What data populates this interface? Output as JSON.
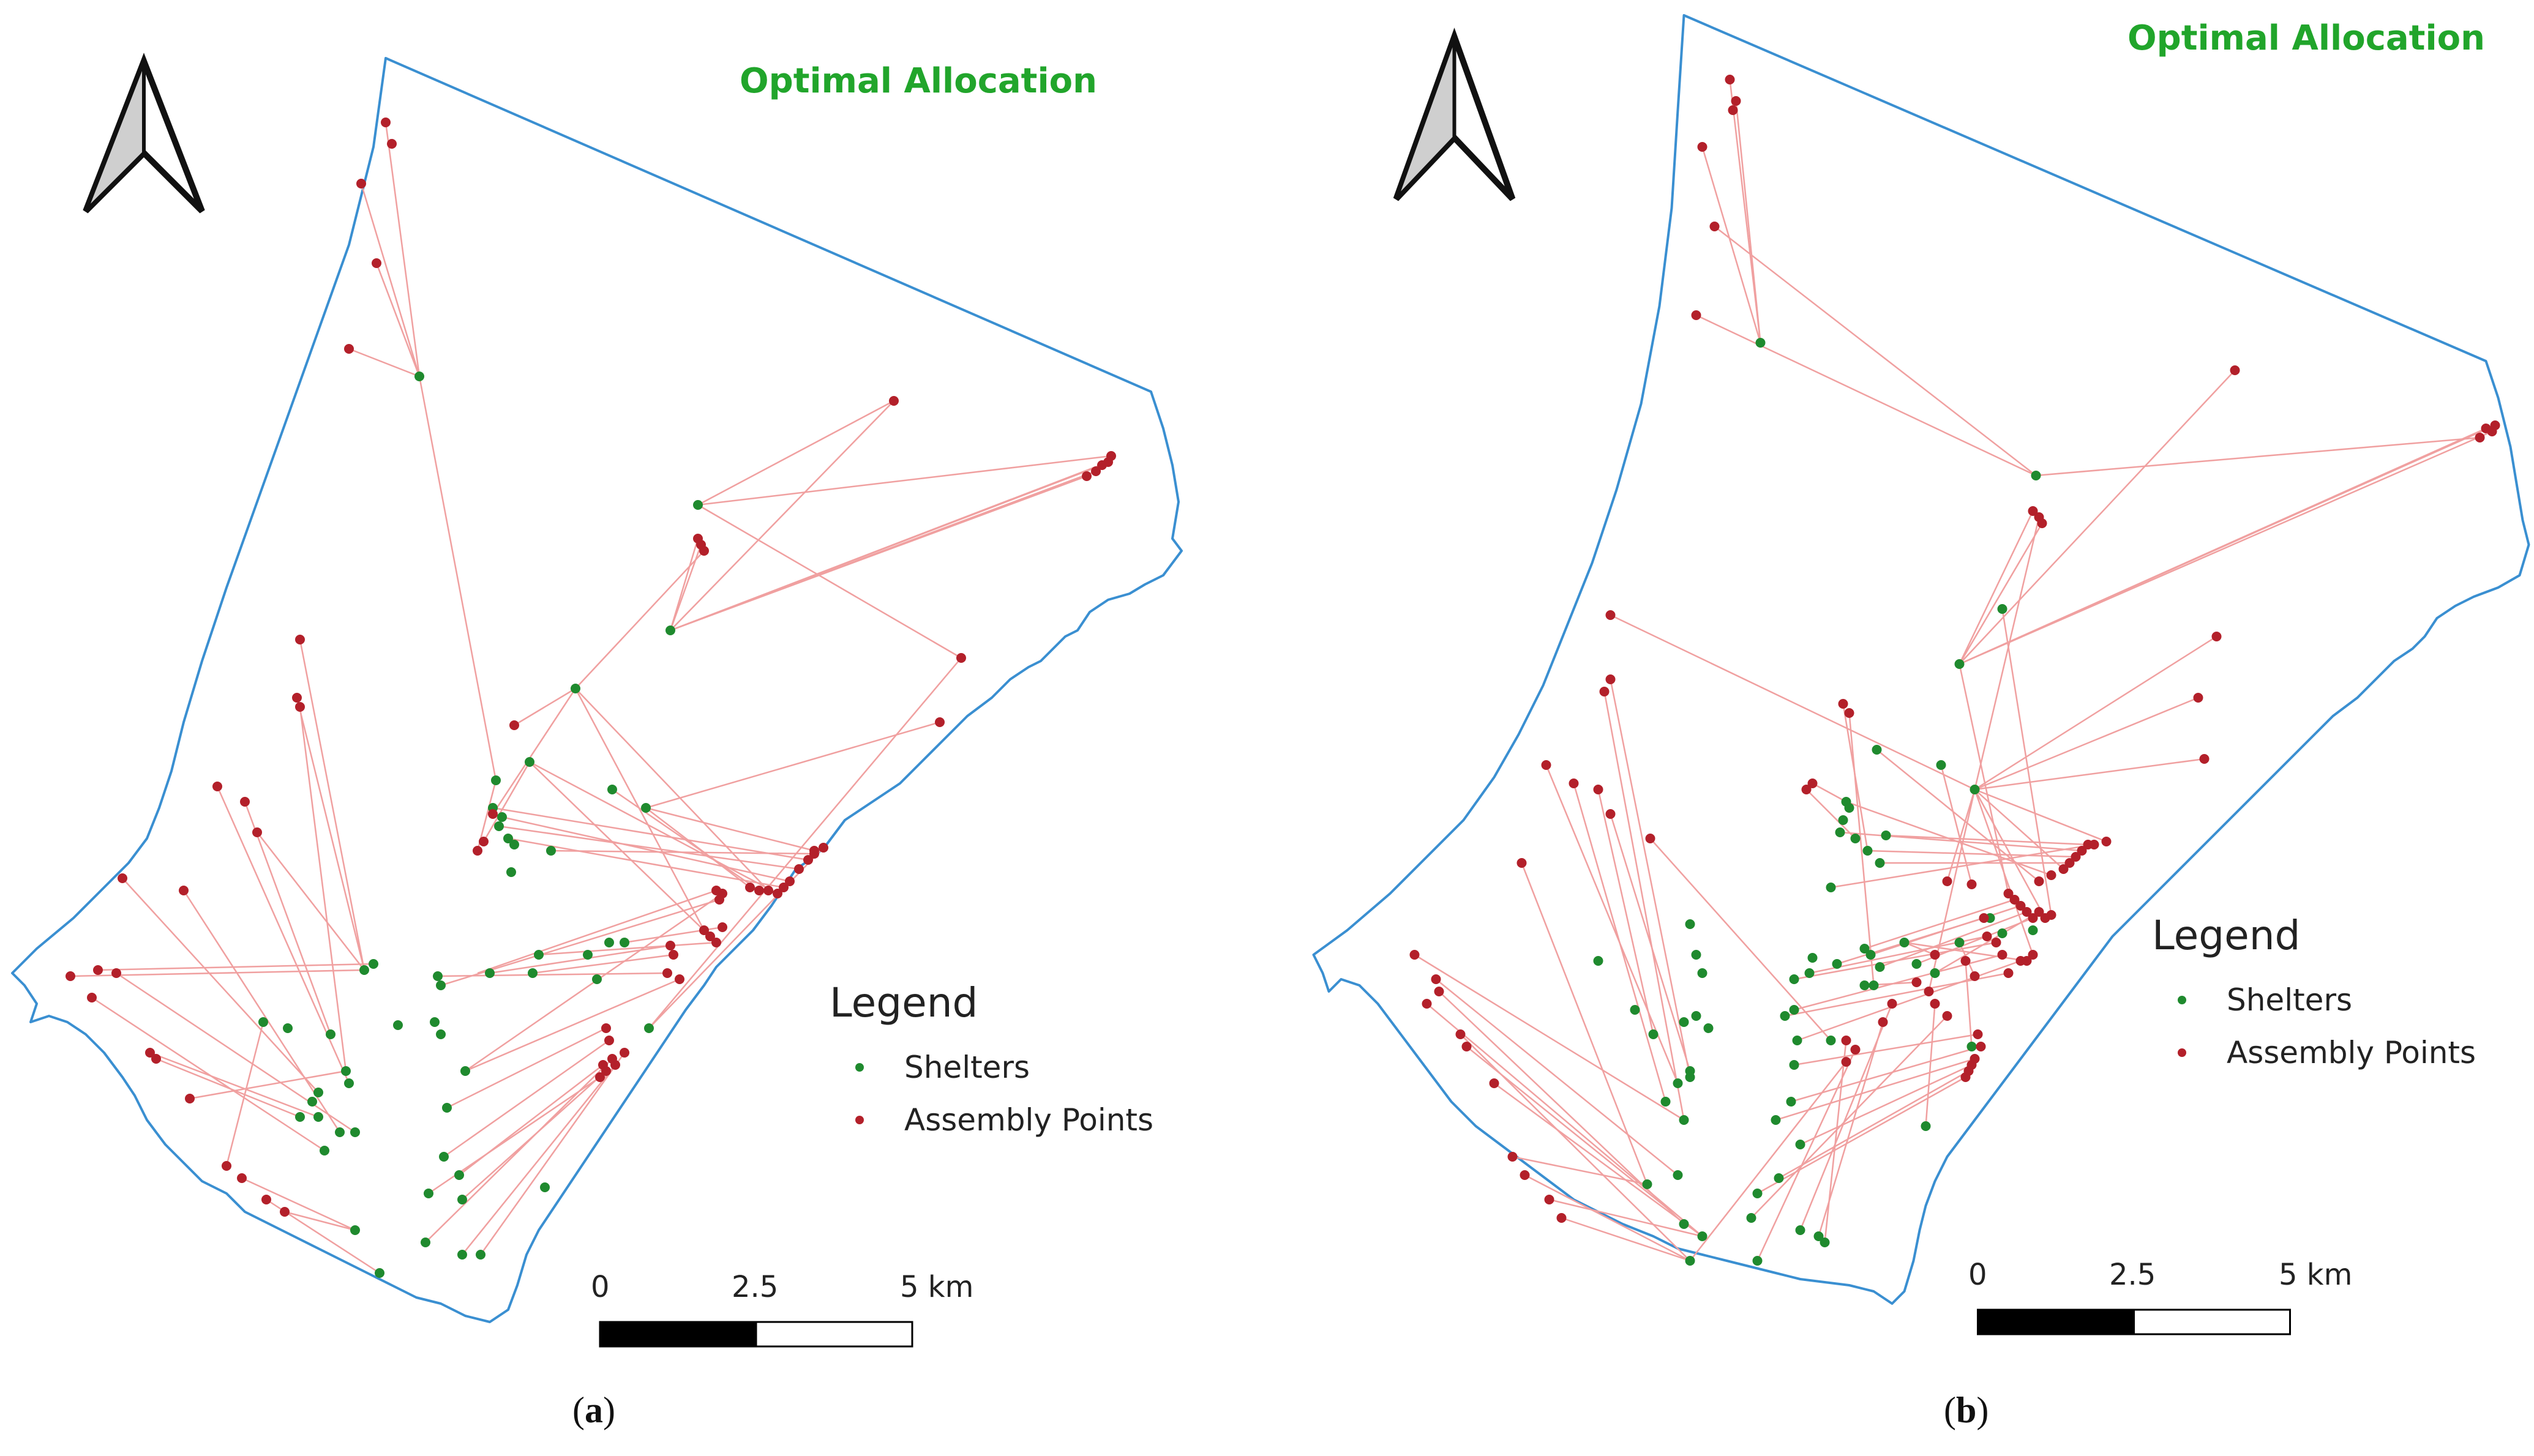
{
  "colors": {
    "boundary": "#3a8fd1",
    "shelter": "#1f8a2e",
    "assembly": "#b3202a",
    "link": "#f0a0a0",
    "title": "#21a52b"
  },
  "panels": [
    {
      "id": "a",
      "title": "Optimal Allocation",
      "legend": {
        "title": "Legend",
        "shelters_label": "Shelters",
        "assembly_label": "Assembly Points"
      },
      "scale": {
        "labels": [
          "0",
          "2.5",
          "5 km"
        ]
      },
      "caption": {
        "open": "(",
        "letter": "a",
        "close": ")"
      }
    },
    {
      "id": "b",
      "title": "Optimal Allocation",
      "legend": {
        "title": "Legend",
        "shelters_label": "Shelters",
        "assembly_label": "Assembly Points"
      },
      "scale": {
        "labels": [
          "0",
          "2.5",
          "5 km"
        ]
      },
      "caption": {
        "open": "(",
        "letter": "b",
        "close": ")"
      }
    }
  ]
}
